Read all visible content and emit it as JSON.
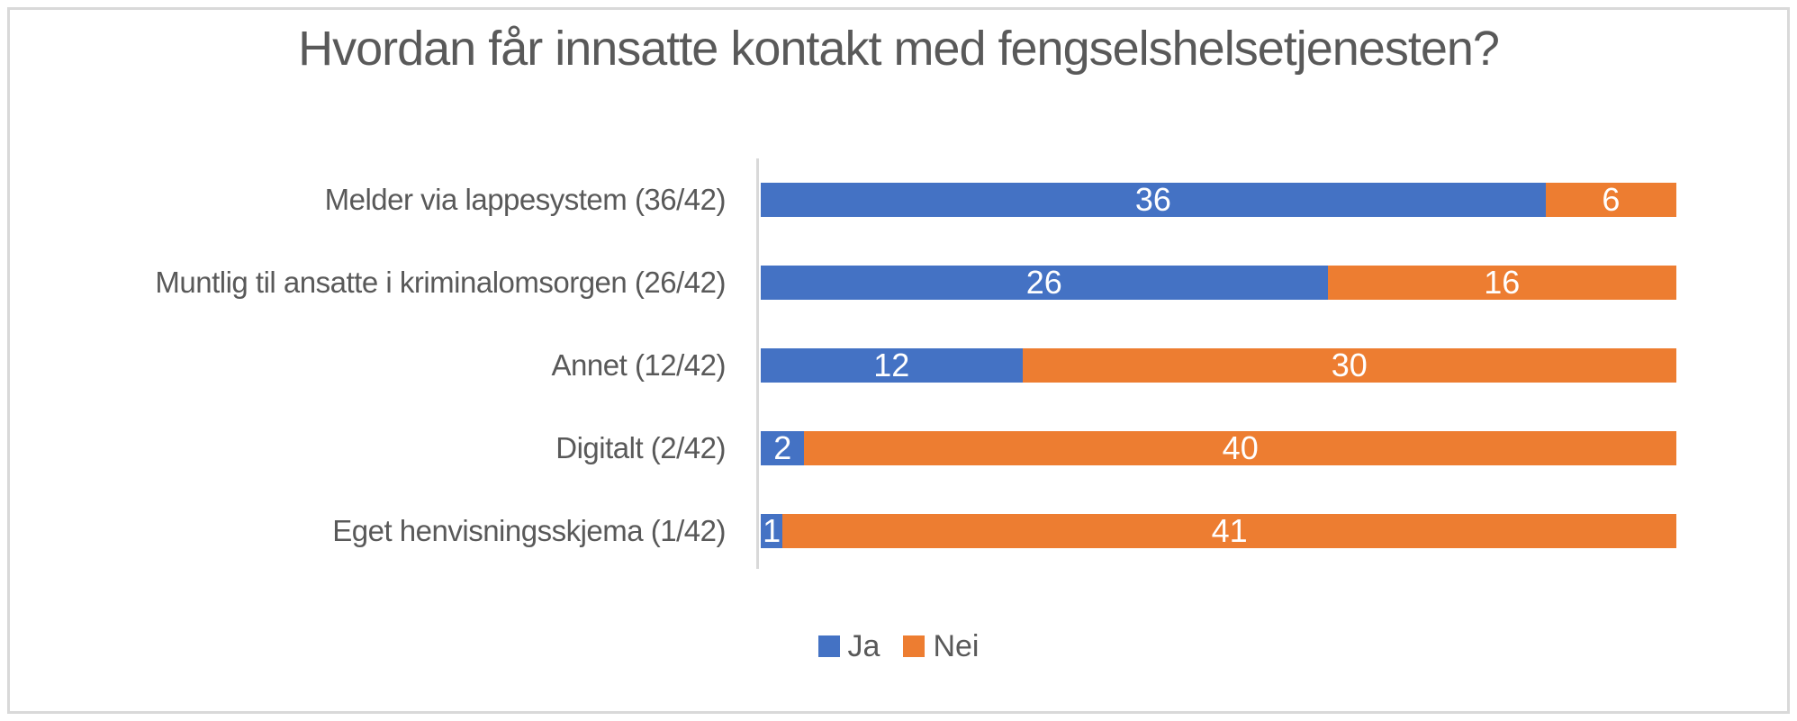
{
  "chart_data": {
    "type": "bar",
    "orientation": "horizontal",
    "stacked": true,
    "title": "Hvordan får innsatte kontakt med fengselshelsetjenesten?",
    "categories": [
      "Melder via lappesystem (36/42)",
      "Muntlig til ansatte i kriminalomsorgen (26/42)",
      "Annet (12/42)",
      "Digitalt (2/42)",
      "Eget henvisningsskjema (1/42)"
    ],
    "series": [
      {
        "name": "Ja",
        "color": "#4472C4",
        "values": [
          36,
          26,
          12,
          2,
          1
        ]
      },
      {
        "name": "Nei",
        "color": "#ED7D31",
        "values": [
          6,
          16,
          30,
          40,
          41
        ]
      }
    ],
    "x_total": 42,
    "xlim": [
      0,
      42
    ],
    "data_labels": true,
    "grid": false,
    "legend_position": "bottom",
    "colors": {
      "title_text": "#595959",
      "category_text": "#595959",
      "legend_text": "#595959",
      "data_label_text": "#FFFFFF",
      "axis_line": "#D9D9D9",
      "frame_border": "#D9D9D9",
      "background": "#FFFFFF"
    }
  }
}
